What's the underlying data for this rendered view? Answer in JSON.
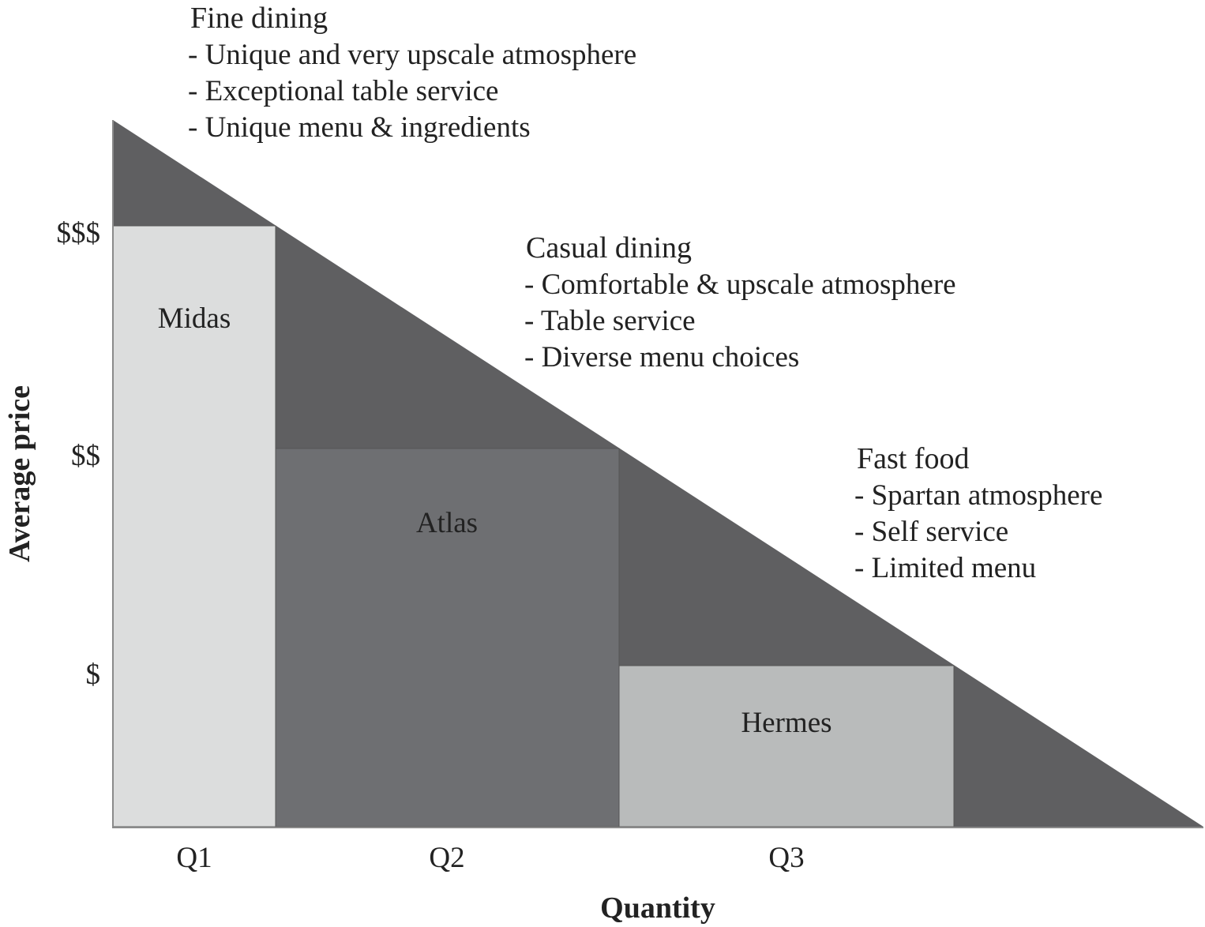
{
  "axes": {
    "x_title": "Quantity",
    "y_title": "Average price",
    "x_ticks": [
      "Q1",
      "Q2",
      "Q3"
    ],
    "y_ticks": [
      "$$$",
      "$$",
      "$"
    ]
  },
  "segments": [
    {
      "title": "Fine dining",
      "bullets": [
        "- Unique and very upscale atmosphere",
        "- Exceptional table service",
        "- Unique menu & ingredients"
      ]
    },
    {
      "title": "Casual dining",
      "bullets": [
        "- Comfortable & upscale atmosphere",
        "- Table service",
        "- Diverse menu choices"
      ]
    },
    {
      "title": "Fast food",
      "bullets": [
        "- Spartan atmosphere",
        "- Self service",
        "- Limited menu"
      ]
    }
  ],
  "boxes": [
    {
      "label": "Midas",
      "price": "$$$",
      "quantity": "Q1",
      "color": "#dcdddd"
    },
    {
      "label": "Atlas",
      "price": "$$",
      "quantity": "Q2",
      "color": "#6e6f72"
    },
    {
      "label": "Hermes",
      "price": "$",
      "quantity": "Q3",
      "color": "#b9bbbb"
    }
  ],
  "colors": {
    "triangle": "#5f5f61",
    "axis": "#8a8a8a",
    "background": "#ffffff"
  }
}
